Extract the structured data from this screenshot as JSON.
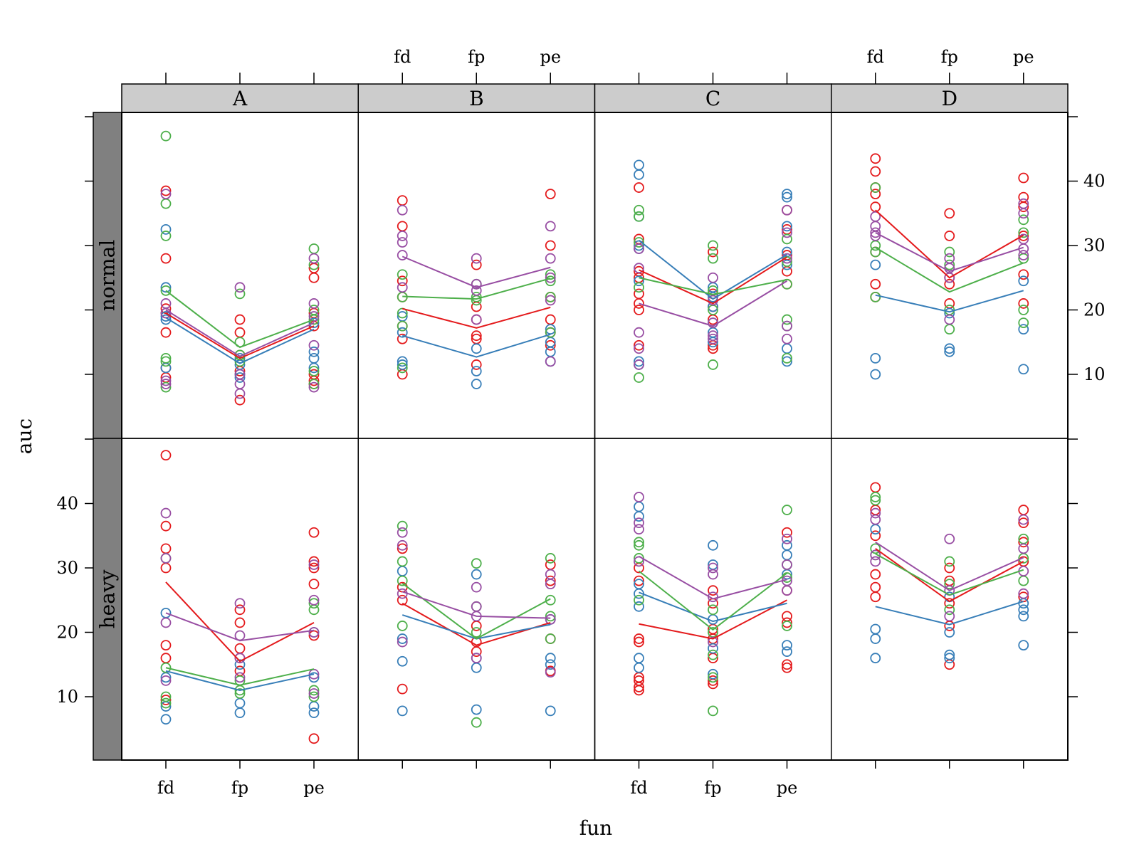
{
  "chart_data": {
    "type": "scatter",
    "xlabel": "fun",
    "ylabel": "auc",
    "x_categories": [
      "fd",
      "fp",
      "pe"
    ],
    "y_ticks": [
      10,
      20,
      30,
      40
    ],
    "ylim": [
      0,
      50
    ],
    "columns": [
      "A",
      "B",
      "C",
      "D"
    ],
    "rows": [
      "normal",
      "heavy"
    ],
    "colors": {
      "red": "#e41a1c",
      "blue": "#377eb8",
      "green": "#4daf4a",
      "purple": "#984ea3"
    },
    "strip_colors": {
      "column": "#cccccc",
      "row": "#808080"
    },
    "grid": false,
    "legend": "none",
    "panels": [
      {
        "row": "normal",
        "column": "A",
        "points": {
          "red": [
            [
              19.5,
              20.2,
              16.5,
              28,
              38.5,
              9.5,
              11
            ],
            [
              10.5,
              16.5,
              18.5,
              13,
              6
            ],
            [
              17.5,
              19.5,
              25,
              26.5,
              9,
              10,
              8.5
            ]
          ],
          "blue": [
            [
              23.5,
              32.5,
              18.5,
              19,
              11
            ],
            [
              12.5,
              10,
              11.5,
              9.5
            ],
            [
              18,
              13.5,
              12.5,
              11
            ]
          ],
          "green": [
            [
              47,
              36.5,
              31.5,
              23,
              8,
              12.5,
              12
            ],
            [
              22.5,
              13,
              15,
              12
            ],
            [
              29.5,
              27,
              20,
              18.5,
              10.5,
              8.5
            ]
          ],
          "purple": [
            [
              38,
              21,
              19.5,
              9,
              8.5
            ],
            [
              23.5,
              7,
              10,
              8.5
            ],
            [
              21,
              28,
              19,
              14.5,
              8
            ]
          ]
        },
        "means": {
          "red": [
            19.5,
            12.5,
            17.5
          ],
          "blue": [
            18.8,
            11.7,
            17
          ],
          "green": [
            23,
            14.2,
            18.5
          ],
          "purple": [
            20,
            12.8,
            18
          ]
        }
      },
      {
        "row": "normal",
        "column": "B",
        "points": {
          "red": [
            [
              37,
              33,
              24.5,
              22,
              17.5,
              15.5,
              10
            ],
            [
              27,
              20.5,
              18.5,
              16,
              15.5,
              11.5
            ],
            [
              38,
              30,
              22,
              18.5,
              16.5,
              14.5
            ]
          ],
          "blue": [
            [
              19,
              16.5,
              12,
              11.5
            ],
            [
              14,
              10.5,
              8.5
            ],
            [
              17,
              15,
              12,
              13.5
            ]
          ],
          "green": [
            [
              25.5,
              22,
              19.5,
              17.5,
              11
            ],
            [
              22,
              24,
              21.5
            ],
            [
              25.5,
              24.5,
              22,
              16.5
            ]
          ],
          "purple": [
            [
              35.5,
              31.5,
              30.5,
              28.5,
              23.5
            ],
            [
              28,
              24,
              23,
              18.5
            ],
            [
              33,
              28,
              25,
              21.5,
              12
            ]
          ]
        },
        "means": {
          "red": [
            20.2,
            17.2,
            20.4
          ],
          "blue": [
            16,
            12.7,
            16.2
          ],
          "green": [
            22.1,
            21.7,
            24.9
          ],
          "purple": [
            28.3,
            23.5,
            26.6
          ]
        }
      },
      {
        "row": "normal",
        "column": "C",
        "points": {
          "red": [
            [
              39,
              31,
              26,
              25,
              22.5,
              21,
              20,
              14.5
            ],
            [
              29,
              22.5,
              20.5,
              18.5,
              14.5,
              14
            ],
            [
              35.5,
              32.5,
              28.5,
              26,
              24
            ]
          ],
          "blue": [
            [
              42.5,
              41,
              34.5,
              30,
              29.5,
              24.5,
              12,
              11.5
            ],
            [
              23.5,
              22,
              20.5,
              18,
              16.5,
              15
            ],
            [
              38,
              37.5,
              33,
              29,
              27,
              14,
              12
            ]
          ],
          "green": [
            [
              35.5,
              34.5,
              30.5,
              23.5,
              9.5
            ],
            [
              30,
              28,
              23,
              20,
              11.5
            ],
            [
              31,
              27.5,
              24,
              18.5,
              17.5,
              12.5
            ]
          ],
          "purple": [
            [
              29.5,
              26.5,
              16.5,
              14,
              11.5
            ],
            [
              25,
              21.5,
              18,
              16,
              15.5
            ],
            [
              35.5,
              32,
              28,
              17.5,
              15.5
            ]
          ]
        },
        "means": {
          "red": [
            26.2,
            21,
            28.2
          ],
          "blue": [
            30.8,
            21.7,
            28.6
          ],
          "green": [
            25,
            22.4,
            24.7
          ],
          "purple": [
            21,
            17.5,
            24.5
          ]
        }
      },
      {
        "row": "normal",
        "column": "D",
        "points": {
          "red": [
            [
              43.5,
              41.5,
              39,
              38,
              36,
              29,
              24,
              22
            ],
            [
              35,
              31.5,
              25,
              24,
              21
            ],
            [
              40.5,
              37.5,
              36,
              31.5,
              25.5,
              21
            ]
          ],
          "blue": [
            [
              27,
              12.5,
              10
            ],
            [
              14,
              13.5,
              19.5
            ],
            [
              17,
              10.8,
              24.5
            ]
          ],
          "green": [
            [
              39,
              30,
              29,
              22
            ],
            [
              29,
              27,
              20,
              17
            ],
            [
              34,
              32,
              28,
              20,
              18
            ]
          ],
          "purple": [
            [
              34.5,
              33,
              32,
              31.5
            ],
            [
              28,
              26.5,
              25,
              18.5
            ],
            [
              36.5,
              35,
              31,
              29.5,
              28.5
            ]
          ]
        },
        "means": {
          "red": [
            35.5,
            25,
            31.6
          ],
          "blue": [
            22.3,
            19.7,
            23
          ],
          "green": [
            29.7,
            22.8,
            27.3
          ],
          "purple": [
            32,
            26,
            29.7
          ]
        }
      },
      {
        "row": "heavy",
        "column": "A",
        "points": {
          "red": [
            [
              47.5,
              36.5,
              33,
              30,
              18,
              16,
              9.5
            ],
            [
              23.5,
              21.5,
              17.5,
              16,
              14
            ],
            [
              35.5,
              31,
              30,
              27.5,
              19.5,
              3.5
            ]
          ],
          "blue": [
            [
              23,
              13,
              8.5,
              6.5
            ],
            [
              15,
              9,
              7.5
            ],
            [
              20,
              13,
              8.5,
              7.5
            ]
          ],
          "green": [
            [
              31.5,
              14.5,
              10,
              9
            ],
            [
              12.5,
              11,
              10.5
            ],
            [
              24.5,
              23.5,
              11,
              10
            ]
          ],
          "purple": [
            [
              38.5,
              31.5,
              21.5,
              12.5
            ],
            [
              24.5,
              19.5,
              16,
              13
            ],
            [
              30.5,
              25,
              20,
              13.5,
              10.5
            ]
          ]
        },
        "means": {
          "red": [
            27.8,
            15.5,
            21.5
          ],
          "blue": [
            14,
            11,
            13.5
          ],
          "green": [
            14.5,
            11.8,
            14.3
          ],
          "purple": [
            23,
            18.7,
            20.3
          ]
        }
      },
      {
        "row": "heavy",
        "column": "B",
        "points": {
          "red": [
            [
              33,
              27,
              25,
              11.2
            ],
            [
              21,
              18.5,
              17
            ],
            [
              30.5,
              28,
              19,
              14
            ]
          ],
          "blue": [
            [
              29.5,
              19,
              15.5,
              7.8
            ],
            [
              29,
              16,
              14.5,
              8
            ],
            [
              22,
              16,
              15,
              7.8
            ]
          ],
          "green": [
            [
              36.5,
              31,
              28,
              21
            ],
            [
              30.7,
              24,
              20,
              6
            ],
            [
              31.5,
              25,
              22.5,
              19
            ]
          ],
          "purple": [
            [
              35.5,
              33.5,
              26,
              18.5
            ],
            [
              27,
              24,
              22.5,
              16
            ],
            [
              29,
              27.5,
              22,
              13.8
            ]
          ]
        },
        "means": {
          "red": [
            24.5,
            18,
            21.5
          ],
          "blue": [
            22.7,
            19,
            21.2
          ],
          "green": [
            27.6,
            19,
            25.2
          ],
          "purple": [
            26.3,
            22.5,
            22.2
          ]
        }
      },
      {
        "row": "heavy",
        "column": "C",
        "points": {
          "red": [
            [
              30,
              28,
              19,
              18.5,
              13,
              12.5,
              11.5,
              11
            ],
            [
              26.5,
              24.5,
              20.5,
              19,
              16,
              12,
              12.5
            ],
            [
              35.5,
              26.5,
              22.5,
              21.5,
              15,
              14.5
            ]
          ],
          "blue": [
            [
              39.5,
              38,
              27.5,
              26,
              24,
              16,
              14.5
            ],
            [
              33.5,
              30.5,
              22,
              17.5,
              13.5
            ],
            [
              33.5,
              32,
              29,
              18,
              17
            ]
          ],
          "green": [
            [
              34,
              33.5,
              31.5,
              25
            ],
            [
              23.5,
              20,
              16.5,
              13,
              7.8
            ],
            [
              39,
              30.5,
              28.5,
              21
            ]
          ],
          "purple": [
            [
              41,
              37,
              36,
              31
            ],
            [
              30,
              29,
              25.5,
              18.5
            ],
            [
              34.5,
              30.5,
              28,
              26.5
            ]
          ]
        },
        "means": {
          "red": [
            21.3,
            19,
            25
          ],
          "blue": [
            26.2,
            21.7,
            24.5
          ],
          "green": [
            29.5,
            20.4,
            29.2
          ],
          "purple": [
            31.8,
            25.2,
            28.2
          ]
        }
      },
      {
        "row": "heavy",
        "column": "D",
        "points": {
          "red": [
            [
              42.5,
              39,
              35,
              29,
              27,
              25.5
            ],
            [
              30,
              28,
              24.5,
              21,
              15
            ],
            [
              39,
              37,
              34,
              31,
              25.5
            ]
          ],
          "blue": [
            [
              36,
              20.5,
              19,
              16
            ],
            [
              25.5,
              20,
              16.5,
              16
            ],
            [
              24.5,
              23.5,
              22.5,
              18
            ]
          ],
          "green": [
            [
              41,
              40.5,
              33,
              32
            ],
            [
              31,
              27.5,
              23.5
            ],
            [
              34.5,
              31.5,
              28
            ]
          ],
          "purple": [
            [
              38.5,
              37.5,
              32,
              31
            ],
            [
              34.5,
              26.5,
              22.5
            ],
            [
              37.5,
              33,
              29.5,
              26
            ]
          ]
        },
        "means": {
          "red": [
            33,
            24.8,
            31
          ],
          "blue": [
            24,
            21.2,
            24.8
          ],
          "green": [
            32.2,
            25.8,
            29.7
          ],
          "purple": [
            34,
            26.5,
            31.6
          ]
        }
      }
    ]
  }
}
